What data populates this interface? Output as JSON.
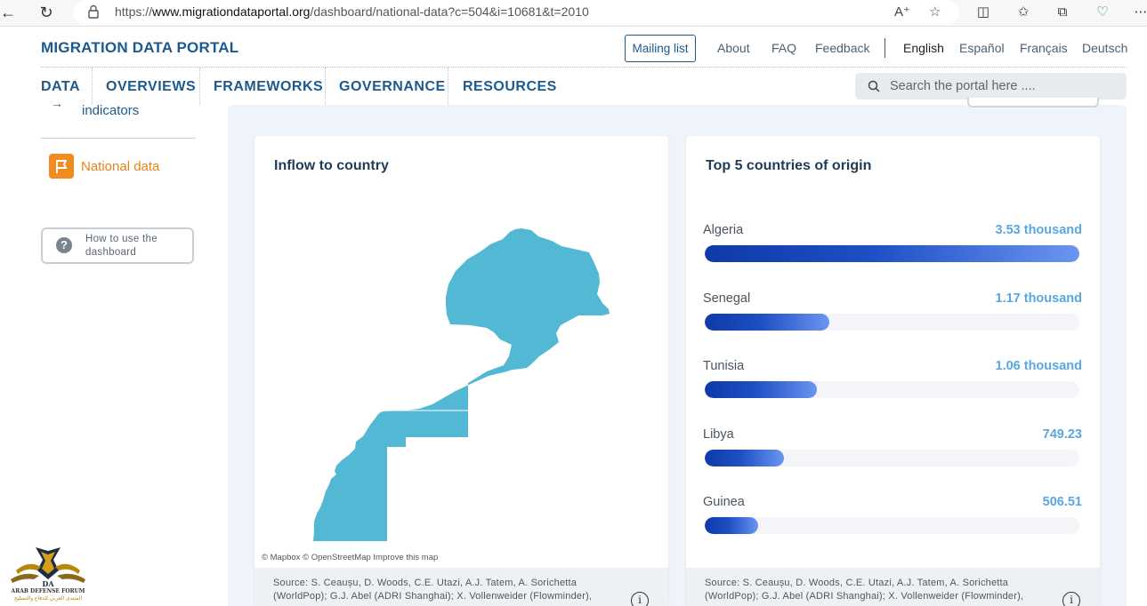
{
  "browser": {
    "url_prefix": "https://",
    "url_host": "www.migrationdataportal.org",
    "url_path": "/dashboard/national-data?c=504&i=10681&t=2010",
    "read_aloud_label": "A)"
  },
  "header": {
    "brand": "MIGRATION DATA PORTAL",
    "mailing_list": "Mailing list",
    "links": [
      "About",
      "FAQ",
      "Feedback"
    ],
    "languages": [
      "English",
      "Español",
      "Français",
      "Deutsch"
    ],
    "active_language": "English"
  },
  "nav": {
    "items": [
      "DATA",
      "OVERVIEWS",
      "FRAMEWORKS",
      "GOVERNANCE",
      "RESOURCES"
    ],
    "search_placeholder": "Search the portal here ...."
  },
  "sidebar": {
    "indicators_label": "indicators",
    "national_data_label": "National data",
    "howto_label": "How to use the dashboard"
  },
  "map_card": {
    "title": "Inflow to country",
    "attribution": "© Mapbox  © OpenStreetMap  Improve this map",
    "source": "Source: S. Ceaușu, D. Woods, C.E. Utazi, A.J. Tatem, A. Sorichetta (WorldPop); G.J. Abel (ADRI Shanghai); X. Vollenweider (Flowminder),",
    "map_color": "#53b8d4"
  },
  "origin_card": {
    "title": "Top 5 countries of origin",
    "items": [
      {
        "country": "Algeria",
        "value_label": "3.53 thousand",
        "value": 3530
      },
      {
        "country": "Senegal",
        "value_label": "1.17 thousand",
        "value": 1170
      },
      {
        "country": "Tunisia",
        "value_label": "1.06 thousand",
        "value": 1060
      },
      {
        "country": "Libya",
        "value_label": "749.23",
        "value": 749.23
      },
      {
        "country": "Guinea",
        "value_label": "506.51",
        "value": 506.51
      }
    ],
    "source": "Source: S. Ceaușu, D. Woods, C.E. Utazi, A.J. Tatem, A. Sorichetta (WorldPop); G.J. Abel (ADRI Shanghai); X. Vollenweider (Flowminder),"
  },
  "watermark": {
    "line1": "ARAB DEFENSE FORUM",
    "line2": "المنتدى العربي للدفاع والتسليح"
  },
  "colors": {
    "brand": "#1d5a8c",
    "accent_orange": "#f28b1d",
    "bar_start": "#0f3aa8",
    "bar_end": "#6b95f0",
    "value_blue": "#5aa7e0"
  }
}
